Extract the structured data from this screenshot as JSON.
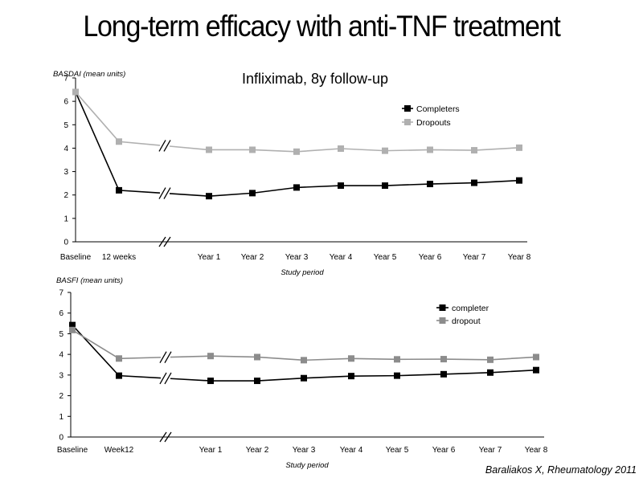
{
  "page": {
    "title": "Long-term efficacy with anti-TNF treatment",
    "citation": "Baraliakos X, Rheumatology 2011"
  },
  "chart_data": [
    {
      "type": "line",
      "title": "Infliximab, 8y follow-up",
      "ylabel": "BASDAI (mean units)",
      "xlabel": "Study period",
      "categories": [
        "Baseline",
        "12 weeks",
        "Year 1",
        "Year 2",
        "Year 3",
        "Year 4",
        "Year 5",
        "Year 6",
        "Year 7",
        "Year 8"
      ],
      "ylim": [
        0,
        7
      ],
      "yticks": [
        0,
        1,
        2,
        3,
        4,
        5,
        6,
        7
      ],
      "axis_break": "between 12 weeks and Year 1",
      "legend_position": "top-right",
      "series": [
        {
          "name": "Completers",
          "color": "#000000",
          "values": [
            6.4,
            2.2,
            1.95,
            2.08,
            2.32,
            2.4,
            2.4,
            2.47,
            2.52,
            2.62
          ]
        },
        {
          "name": "Dropouts",
          "color": "#b0b0b0",
          "values": [
            6.4,
            4.28,
            3.93,
            3.93,
            3.85,
            3.98,
            3.89,
            3.93,
            3.91,
            4.02
          ]
        }
      ]
    },
    {
      "type": "line",
      "title": "",
      "ylabel": "BASFI (mean units)",
      "xlabel": "Study period",
      "categories": [
        "Baseline",
        "Week12",
        "Year 1",
        "Year 2",
        "Year 3",
        "Year 4",
        "Year 5",
        "Year 6",
        "Year 7",
        "Year 8"
      ],
      "ylim": [
        0,
        7
      ],
      "yticks": [
        0,
        1,
        2,
        3,
        4,
        5,
        6,
        7
      ],
      "axis_break": "between Week12 and Year 1",
      "legend_position": "top-right",
      "series": [
        {
          "name": "completer",
          "color": "#000000",
          "values": [
            5.42,
            2.97,
            2.72,
            2.72,
            2.85,
            2.95,
            2.97,
            3.04,
            3.12,
            3.24
          ]
        },
        {
          "name": "dropout",
          "color": "#8c8c8c",
          "values": [
            5.18,
            3.8,
            3.92,
            3.87,
            3.72,
            3.8,
            3.76,
            3.77,
            3.74,
            3.87
          ]
        }
      ]
    }
  ]
}
